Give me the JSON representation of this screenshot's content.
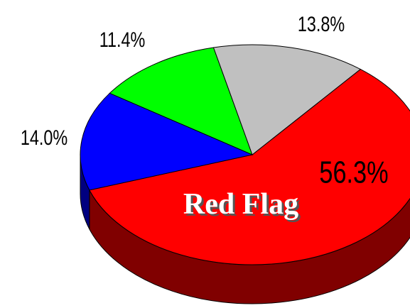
{
  "chart_data": {
    "type": "pie3d",
    "values": [
      56.3,
      14.0,
      11.4,
      13.8
    ],
    "value_labels": [
      "56.3%",
      "14.0%",
      "11.4%",
      "13.8%"
    ],
    "colors": [
      "#ff0000",
      "#0000ff",
      "#00ff00",
      "#c0c0c0"
    ],
    "side_colors": [
      "#800000",
      "#000080",
      "#008000",
      "#808080"
    ],
    "annotation": "Red Flag"
  }
}
